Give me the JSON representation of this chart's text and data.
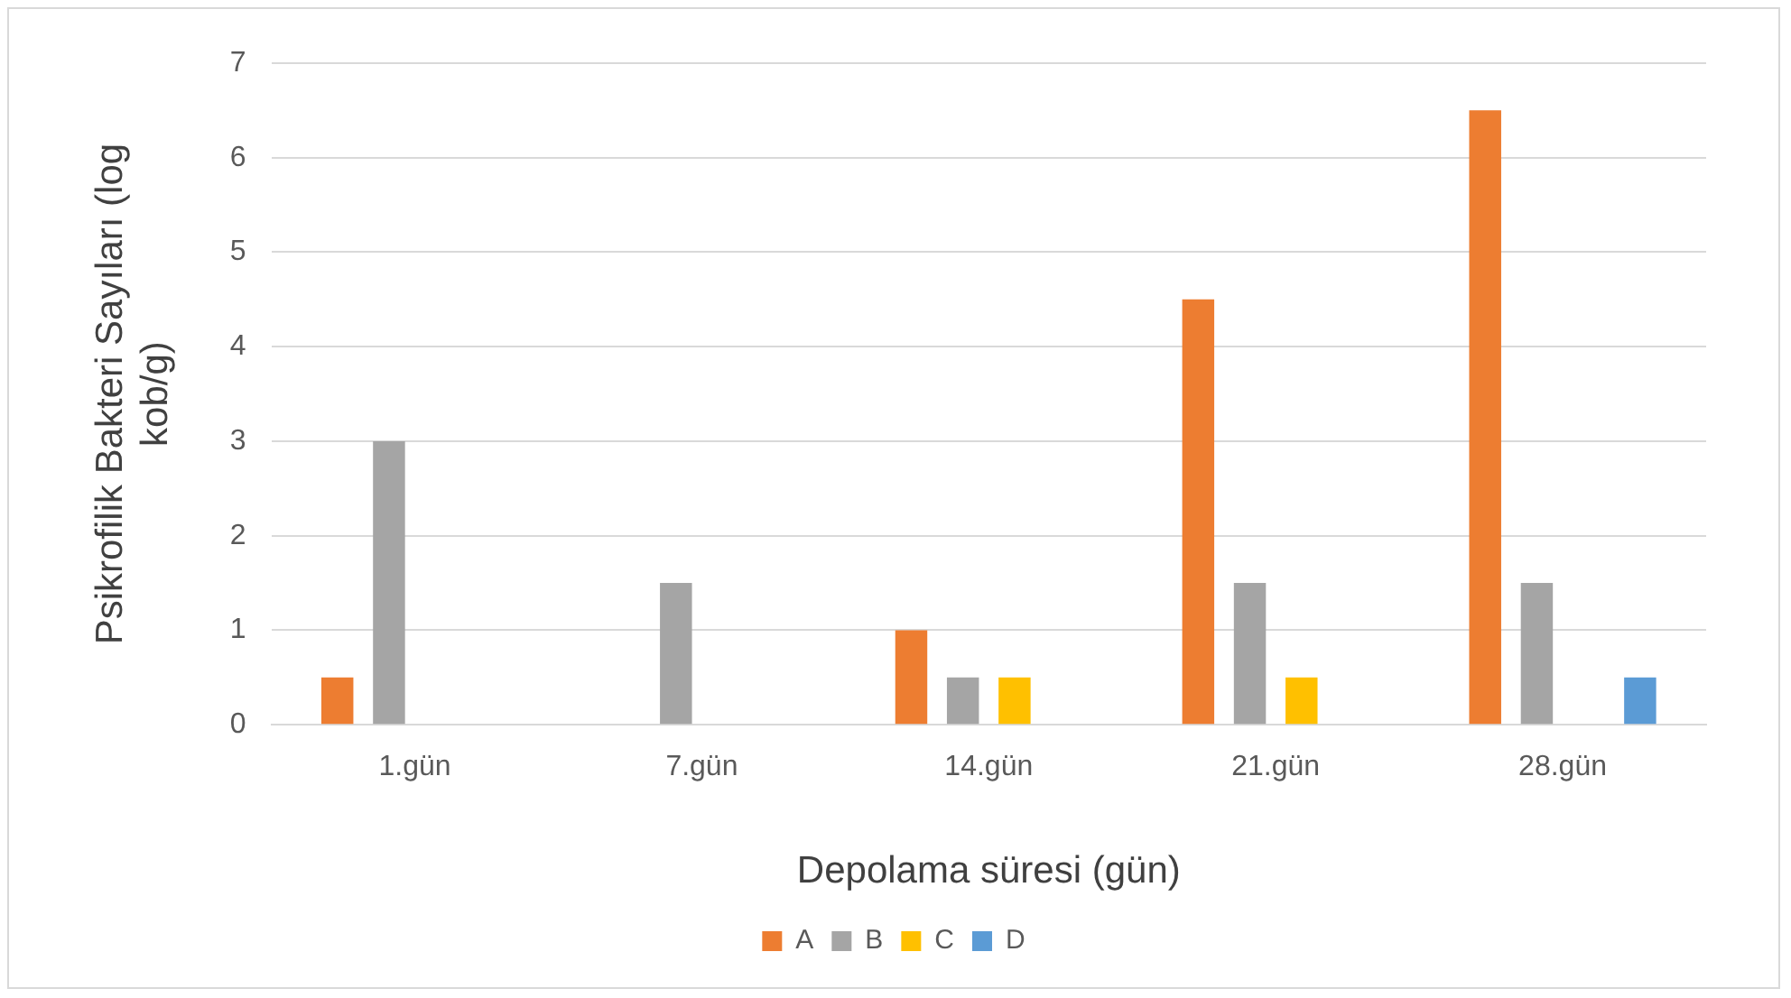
{
  "chart_data": {
    "type": "bar",
    "xlabel": "Depolama süresi (gün)",
    "ylabel": "Psikrofilik Bakteri Sayıları (log kob/g)",
    "categories": [
      "1.gün",
      "7.gün",
      "14.gün",
      "21.gün",
      "28.gün"
    ],
    "series": [
      {
        "name": "A",
        "color": "#ed7d31",
        "values": [
          0.5,
          0,
          1,
          4.5,
          6.5
        ]
      },
      {
        "name": "B",
        "color": "#a5a5a5",
        "values": [
          3,
          1.5,
          0.5,
          1.5,
          1.5
        ]
      },
      {
        "name": "C",
        "color": "#ffc000",
        "values": [
          0,
          0,
          0.5,
          0.5,
          0
        ]
      },
      {
        "name": "D",
        "color": "#5b9bd5",
        "values": [
          0,
          0,
          0,
          0,
          0.5
        ]
      }
    ],
    "ylim": [
      0,
      7
    ],
    "yticks": [
      0,
      1,
      2,
      3,
      4,
      5,
      6,
      7
    ],
    "grid": "y",
    "legend": "bottom"
  }
}
